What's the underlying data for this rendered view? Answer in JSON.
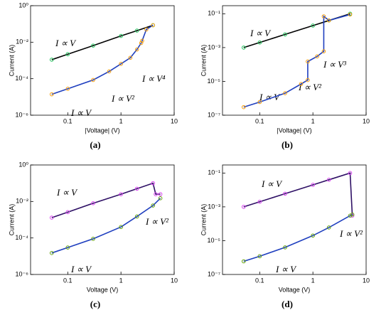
{
  "chart_data": [
    {
      "type": "line",
      "label": "(a)",
      "xlabel": "|Voltage| (V)",
      "ylabel": "Current (A)",
      "xscale": "log",
      "yscale": "log",
      "xlim": [
        0.02,
        10
      ],
      "xticks": [
        0.1,
        1,
        10
      ],
      "ylim": [
        1e-06,
        1
      ],
      "yticks": [
        {
          "value": 1,
          "label": "10⁰"
        },
        {
          "value": 0.01,
          "label": "10⁻²"
        },
        {
          "value": 0.0001,
          "label": "10⁻⁴"
        },
        {
          "value": 1e-06,
          "label": "10⁻⁶"
        }
      ],
      "annotations": [
        "I ∝ V",
        "I ∝ V⁴",
        "I ∝ V²",
        "I ∝ V"
      ],
      "series": [
        {
          "color": "#22c55e",
          "line_color": "#000000",
          "x": [
            0.05,
            0.1,
            0.3,
            1,
            2,
            4
          ],
          "values": [
            0.0011,
            0.0022,
            0.0065,
            0.022,
            0.043,
            0.085
          ]
        },
        {
          "color": "#f59e0b",
          "line_color": "#1f3fbf",
          "x": [
            0.05,
            0.1,
            0.3,
            0.6,
            1,
            1.5,
            2,
            2.4,
            2.5,
            3,
            4
          ],
          "values": [
            1.4e-05,
            2.8e-05,
            8.5e-05,
            0.00025,
            0.00065,
            0.0014,
            0.004,
            0.009,
            0.012,
            0.05,
            0.085
          ]
        }
      ]
    },
    {
      "type": "line",
      "label": "(b)",
      "xlabel": "|Voltage| (V)",
      "ylabel": "Current (A)",
      "xscale": "log",
      "yscale": "log",
      "xlim": [
        0.02,
        10
      ],
      "xticks": [
        0.1,
        1,
        10
      ],
      "ylim": [
        1e-07,
        0.3
      ],
      "yticks": [
        {
          "value": 0.1,
          "label": "10⁻¹"
        },
        {
          "value": 0.001,
          "label": "10⁻³"
        },
        {
          "value": 1e-05,
          "label": "10⁻⁵"
        },
        {
          "value": 1e-07,
          "label": "10⁻⁷"
        }
      ],
      "annotations": [
        "I ∝ V",
        "I ∝ V³",
        "I ∝ V²",
        "I ∝ V"
      ],
      "series": [
        {
          "color": "#22c55e",
          "line_color": "#000000",
          "x": [
            0.05,
            0.1,
            0.3,
            1,
            2,
            5
          ],
          "values": [
            0.001,
            0.002,
            0.006,
            0.02,
            0.04,
            0.1
          ]
        },
        {
          "color": "#f59e0b",
          "line_color": "#1f3fbf",
          "x": [
            0.05,
            0.1,
            0.3,
            0.6,
            0.8,
            0.8,
            1.2,
            1.6,
            1.6,
            2,
            5
          ],
          "values": [
            3e-07,
            6e-07,
            2e-06,
            7e-06,
            1.2e-05,
            0.00015,
            0.0003,
            0.0006,
            0.07,
            0.04,
            0.09
          ]
        }
      ]
    },
    {
      "type": "line",
      "label": "(c)",
      "xlabel": "Voltage (V)",
      "ylabel": "Current (A)",
      "xscale": "log",
      "yscale": "log",
      "xlim": [
        0.02,
        10
      ],
      "xticks": [
        0.1,
        1,
        10
      ],
      "ylim": [
        1e-06,
        1
      ],
      "yticks": [
        {
          "value": 1,
          "label": "10⁰"
        },
        {
          "value": 0.01,
          "label": "10⁻²"
        },
        {
          "value": 0.0001,
          "label": "10⁻⁴"
        },
        {
          "value": 1e-06,
          "label": "10⁻⁶"
        }
      ],
      "annotations": [
        "I ∝ V",
        "I ∝ V²",
        "I ∝ V"
      ],
      "series": [
        {
          "color": "#d946ef",
          "line_color": "#2e1065",
          "x": [
            0.05,
            0.1,
            0.3,
            1,
            2,
            4,
            4.5,
            5.5
          ],
          "values": [
            0.0013,
            0.0026,
            0.008,
            0.025,
            0.05,
            0.1,
            0.025,
            0.025
          ]
        },
        {
          "color": "#65a30d",
          "line_color": "#1f3fbf",
          "x": [
            0.05,
            0.1,
            0.3,
            1,
            2,
            4,
            5.5
          ],
          "values": [
            1.5e-05,
            3e-05,
            9e-05,
            0.0004,
            0.0015,
            0.006,
            0.015
          ]
        }
      ]
    },
    {
      "type": "line",
      "label": "(d)",
      "xlabel": "Voltage (V)",
      "ylabel": "Current (A)",
      "xscale": "log",
      "yscale": "log",
      "xlim": [
        0.02,
        10
      ],
      "xticks": [
        0.1,
        1,
        10
      ],
      "ylim": [
        1e-07,
        0.3
      ],
      "yticks": [
        {
          "value": 0.1,
          "label": "10⁻¹"
        },
        {
          "value": 0.001,
          "label": "10⁻³"
        },
        {
          "value": 1e-05,
          "label": "10⁻⁵"
        },
        {
          "value": 1e-07,
          "label": "10⁻⁷"
        }
      ],
      "annotations": [
        "I ∝ V",
        "I ∝ V²",
        "I ∝ V"
      ],
      "series": [
        {
          "color": "#d946ef",
          "line_color": "#2e1065",
          "x": [
            0.05,
            0.1,
            0.3,
            1,
            2,
            5,
            5.5
          ],
          "values": [
            0.001,
            0.002,
            0.006,
            0.02,
            0.04,
            0.1,
            0.0003
          ]
        },
        {
          "color": "#65a30d",
          "line_color": "#1f3fbf",
          "x": [
            0.05,
            0.1,
            0.3,
            1,
            2,
            5,
            5.5
          ],
          "values": [
            6e-07,
            1.2e-06,
            4e-06,
            2e-05,
            6e-05,
            0.0003,
            0.00035
          ]
        }
      ]
    }
  ]
}
